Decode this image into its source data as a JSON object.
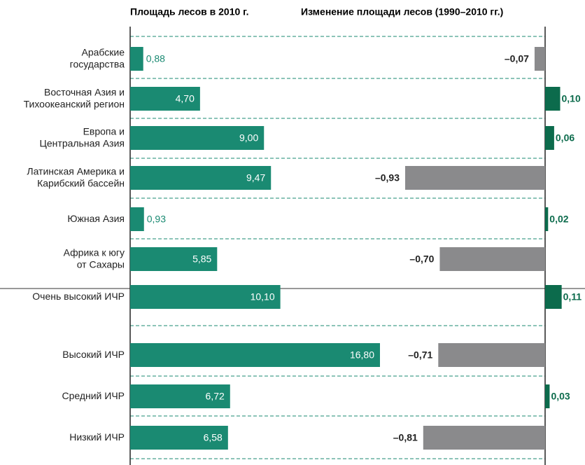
{
  "chart_data": [
    {
      "type": "bar",
      "title": "Площадь лесов в 2010 г.",
      "orientation": "horizontal",
      "categories": [
        "Арабские\nгосударства",
        "Восточная Азия и\nТихоокеанский регион",
        "Европа и\nЦентральная Азия",
        "Латинская Америка и\nКарибский бассейн",
        "Южная Азия",
        "Африка к югу\nот Сахары",
        "Очень высокий ИЧР",
        "Высокий ИЧР",
        "Средний ИЧР",
        "Низкий ИЧР"
      ],
      "values": [
        0.88,
        4.7,
        9.0,
        9.47,
        0.93,
        5.85,
        10.1,
        16.8,
        6.72,
        6.58
      ],
      "value_labels": [
        "0,88",
        "4,70",
        "9,00",
        "9,47",
        "0,93",
        "5,85",
        "10,10",
        "16,80",
        "6,72",
        "6,58"
      ],
      "color": "#1a8a72"
    },
    {
      "type": "bar",
      "title": "Изменение площади лесов (1990–2010 гг.)",
      "orientation": "horizontal",
      "values": [
        -0.07,
        0.1,
        0.06,
        -0.93,
        0.02,
        -0.7,
        0.11,
        -0.71,
        0.03,
        -0.81
      ],
      "value_labels": [
        "–0,07",
        "0,10",
        "0,06",
        "–0,93",
        "0,02",
        "–0,70",
        "0,11",
        "–0,71",
        "0,03",
        "–0,81"
      ],
      "positive_color": "#0c6b4c",
      "negative_color": "#8a8a8c"
    }
  ]
}
